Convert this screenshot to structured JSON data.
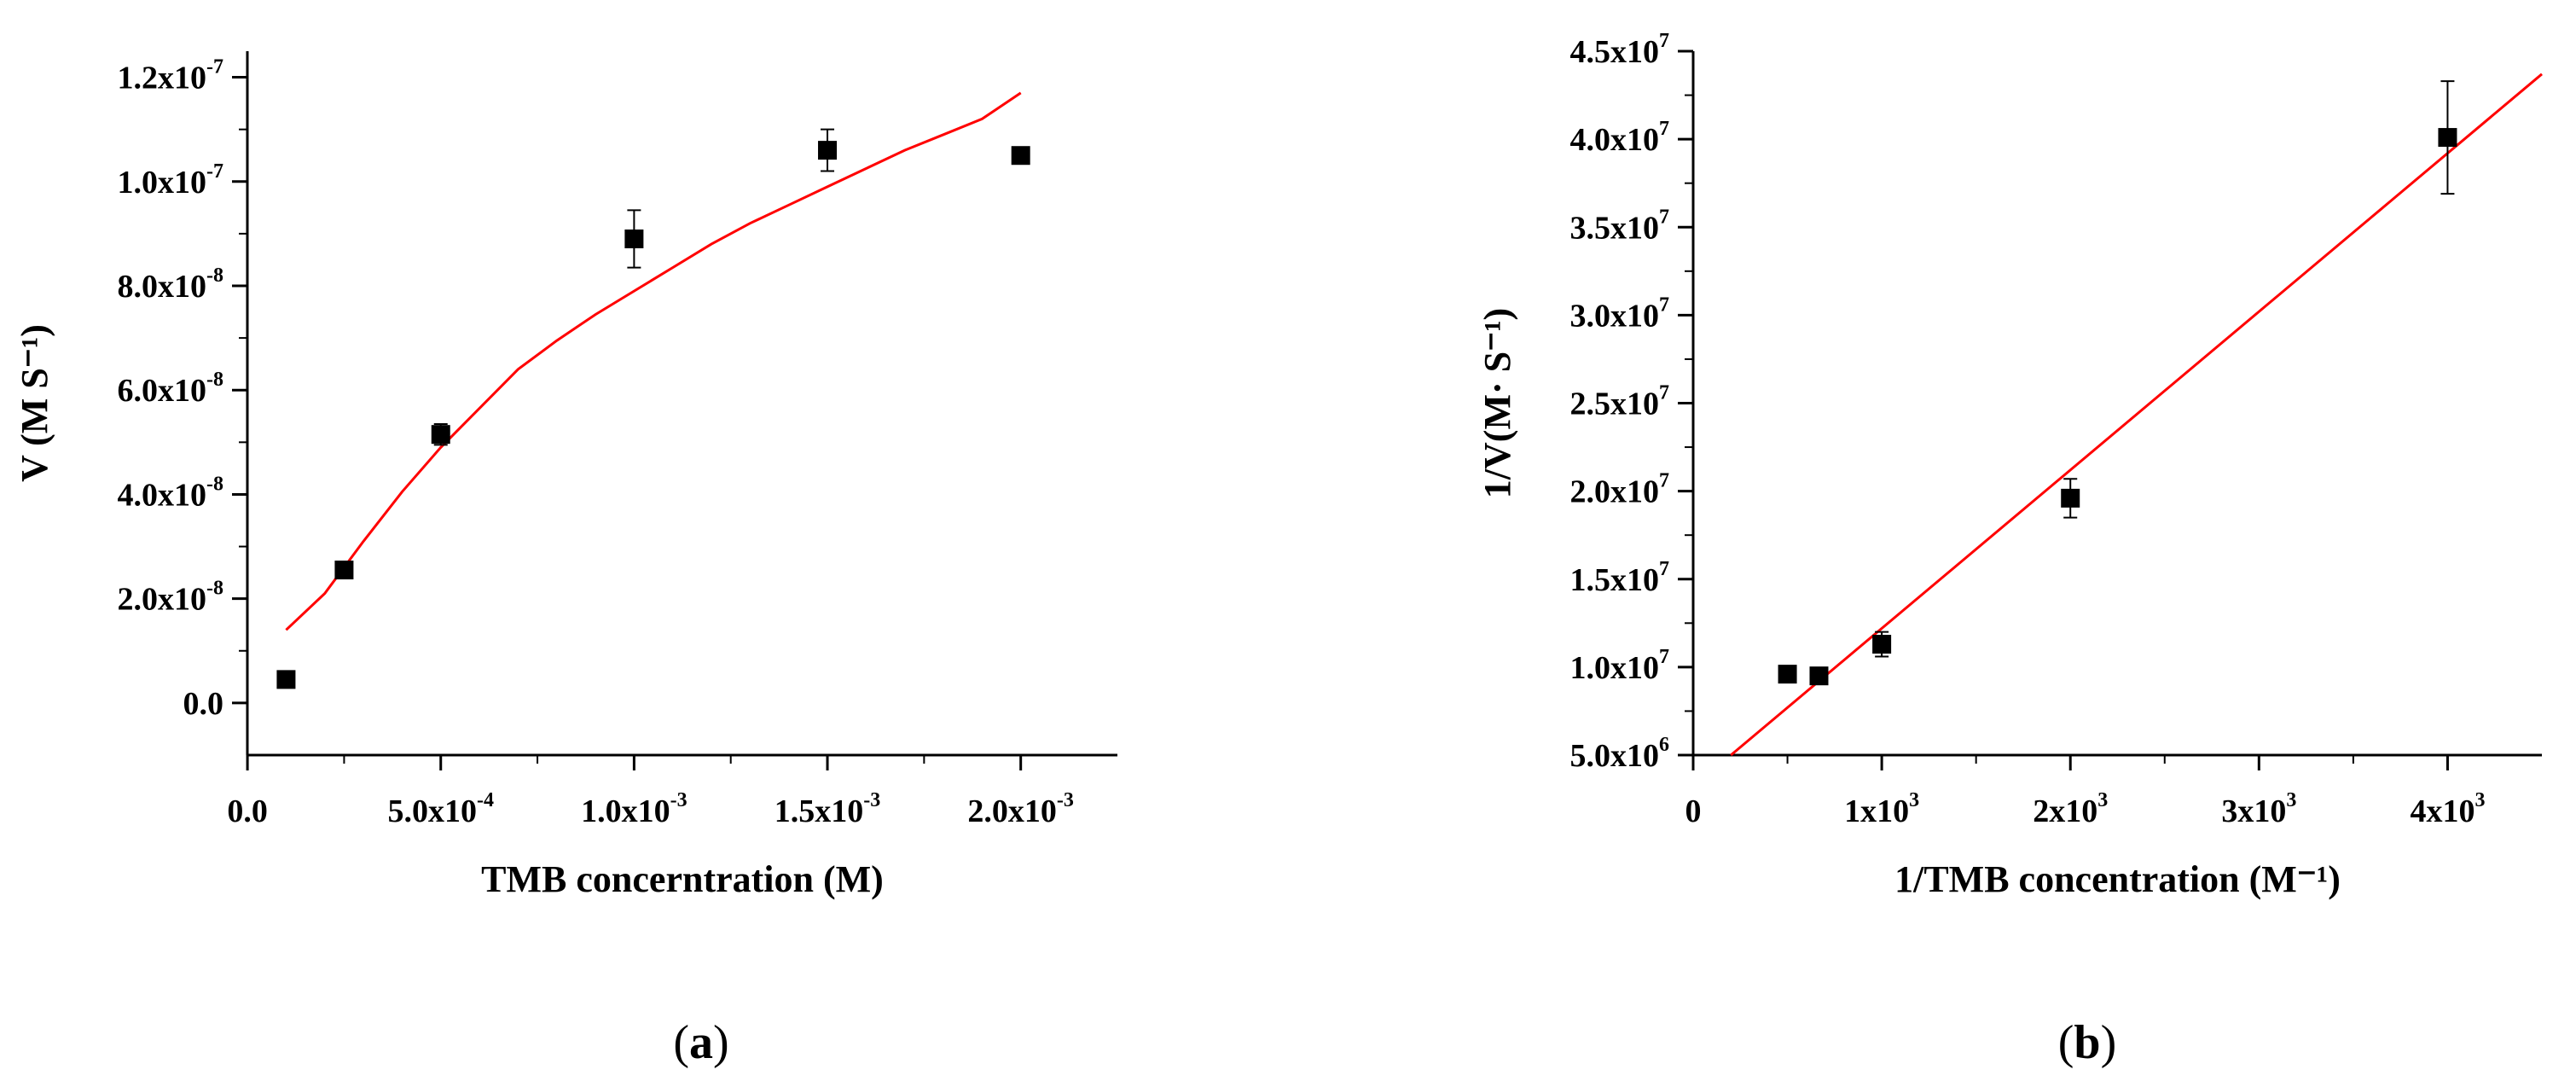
{
  "chart_data": [
    {
      "panel": "(a)",
      "type": "scatter",
      "xlabel": "TMB concerntration (M)",
      "ylabel": "V (M S⁻¹)",
      "xlim": [
        -2e-07,
        0.00225
      ],
      "ylim": [
        -1e-08,
        1.25e-07
      ],
      "x_ticks": [
        0.0,
        0.0005,
        0.001,
        0.0015,
        0.002
      ],
      "x_tick_labels": [
        {
          "m": "0.0",
          "e": ""
        },
        {
          "m": "5.0x10",
          "e": "-4"
        },
        {
          "m": "1.0x10",
          "e": "-3"
        },
        {
          "m": "1.5x10",
          "e": "-3"
        },
        {
          "m": "2.0x10",
          "e": "-3"
        }
      ],
      "y_ticks": [
        0.0,
        2e-08,
        4e-08,
        6e-08,
        8e-08,
        1e-07,
        1.2e-07
      ],
      "y_tick_labels": [
        {
          "m": "0.0",
          "e": ""
        },
        {
          "m": "2.0x10",
          "e": "-8"
        },
        {
          "m": "4.0x10",
          "e": "-8"
        },
        {
          "m": "6.0x10",
          "e": "-8"
        },
        {
          "m": "8.0x10",
          "e": "-8"
        },
        {
          "m": "1.0x10",
          "e": "-7"
        },
        {
          "m": "1.2x10",
          "e": "-7"
        }
      ],
      "points": [
        {
          "x": 0.0001,
          "y": 4.5e-09,
          "err": 1.5e-09
        },
        {
          "x": 0.00025,
          "y": 2.55e-08,
          "err": 1e-09
        },
        {
          "x": 0.0005,
          "y": 5.15e-08,
          "err": 2e-09
        },
        {
          "x": 0.001,
          "y": 8.9e-08,
          "err": 5.5e-09
        },
        {
          "x": 0.0015,
          "y": 1.06e-07,
          "err": 4e-09
        },
        {
          "x": 0.002,
          "y": 1.05e-07,
          "err": 1e-09
        }
      ],
      "fit": {
        "color": "#ff0000",
        "x": [
          0.0001,
          0.0002,
          0.0003,
          0.0004,
          0.0005,
          0.0006,
          0.0007,
          0.0008,
          0.0009,
          0.001,
          0.0011,
          0.0012,
          0.0013,
          0.0014,
          0.0015,
          0.0016,
          0.0017,
          0.0018,
          0.0019,
          0.002
        ],
        "y": [
          1.4e-08,
          2.1e-08,
          3.1e-08,
          4.05e-08,
          4.9e-08,
          5.65e-08,
          6.4e-08,
          6.95e-08,
          7.45e-08,
          7.9e-08,
          8.35e-08,
          8.8e-08,
          9.2e-08,
          9.55e-08,
          9.9e-08,
          1.025e-07,
          1.06e-07,
          1.09e-07,
          1.12e-07,
          1.17e-07
        ]
      },
      "grid": false,
      "marker_color": "#000000"
    },
    {
      "panel": "(b)",
      "type": "scatter",
      "xlabel": "1/TMB concentration (M⁻¹)",
      "ylabel": "1/V(M· S⁻¹)",
      "xlim": [
        0,
        4500
      ],
      "ylim": [
        5000000.0,
        45000000.0
      ],
      "x_ticks": [
        0,
        1000,
        2000,
        3000,
        4000
      ],
      "x_tick_labels": [
        {
          "m": "0",
          "e": ""
        },
        {
          "m": "1x10",
          "e": "3"
        },
        {
          "m": "2x10",
          "e": "3"
        },
        {
          "m": "3x10",
          "e": "3"
        },
        {
          "m": "4x10",
          "e": "3"
        }
      ],
      "y_ticks": [
        5000000.0,
        10000000.0,
        15000000.0,
        20000000.0,
        25000000.0,
        30000000.0,
        35000000.0,
        40000000.0,
        45000000.0
      ],
      "y_tick_labels": [
        {
          "m": "5.0x10",
          "e": "6"
        },
        {
          "m": "1.0x10",
          "e": "7"
        },
        {
          "m": "1.5x10",
          "e": "7"
        },
        {
          "m": "2.0x10",
          "e": "7"
        },
        {
          "m": "2.5x10",
          "e": "7"
        },
        {
          "m": "3.0x10",
          "e": "7"
        },
        {
          "m": "3.5x10",
          "e": "7"
        },
        {
          "m": "4.0x10",
          "e": "7"
        },
        {
          "m": "4.5x10",
          "e": "7"
        }
      ],
      "points": [
        {
          "x": 500,
          "y": 9600000.0,
          "err": 0
        },
        {
          "x": 667,
          "y": 9500000.0,
          "err": 0
        },
        {
          "x": 1000,
          "y": 11300000.0,
          "err": 700000.0
        },
        {
          "x": 2000,
          "y": 19600000.0,
          "err": 1100000.0
        },
        {
          "x": 4000,
          "y": 40100000.0,
          "err": 3200000.0
        }
      ],
      "fit": {
        "color": "#ff0000",
        "x": [
          200,
          4500
        ],
        "y": [
          5000000.0,
          43700000.0
        ]
      },
      "grid": false,
      "marker_color": "#000000"
    }
  ],
  "panel_labels": [
    "(a)",
    "(b)"
  ]
}
